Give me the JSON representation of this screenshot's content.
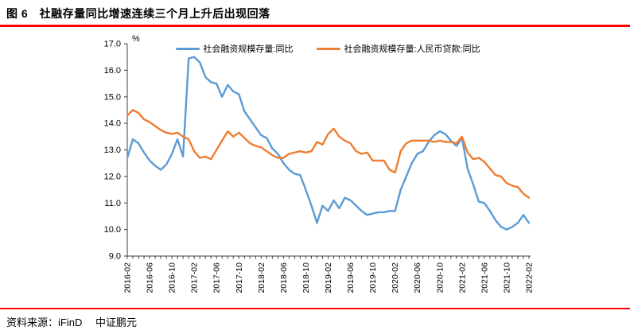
{
  "header": {
    "title": "图 6　社融存量同比增速连续三个月上升后出现回落"
  },
  "footer": {
    "source": "资料来源：iFinD　 中证鹏元"
  },
  "colors": {
    "divider_red": "#fe0000",
    "series_tsf_blue": "#5B9BD5",
    "series_rmb_loans_orange": "#ED7D31",
    "axis": "#404040"
  },
  "chart_data": {
    "type": "line",
    "title": "",
    "unit_label": "%",
    "x_start": "2016-02",
    "x_end": "2022-02",
    "x_interval": "monthly",
    "points_per_series": 73,
    "x_tick_labels": [
      "2016-02",
      "2016-06",
      "2016-10",
      "2017-02",
      "2017-06",
      "2017-10",
      "2018-02",
      "2018-06",
      "2018-10",
      "2019-02",
      "2019-06",
      "2019-10",
      "2020-02",
      "2020-06",
      "2020-10",
      "2021-02",
      "2021-06",
      "2021-10",
      "2022-02"
    ],
    "x_tick_every_n_months": 4,
    "ylim": [
      9.0,
      17.0
    ],
    "y_tick_step": 1.0,
    "y_tick_labels": [
      "9.0",
      "10.0",
      "11.0",
      "12.0",
      "13.0",
      "14.0",
      "15.0",
      "16.0",
      "17.0"
    ],
    "grid": false,
    "legend_position": "top",
    "series": [
      {
        "name": "社会融资规模存量:同比",
        "color": "#5B9BD5",
        "values": [
          12.7,
          13.4,
          13.25,
          12.9,
          12.6,
          12.4,
          12.25,
          12.45,
          12.85,
          13.4,
          12.75,
          16.45,
          16.5,
          16.3,
          15.75,
          15.55,
          15.5,
          15.0,
          15.45,
          15.2,
          15.1,
          14.45,
          14.15,
          13.85,
          13.55,
          13.45,
          13.05,
          12.85,
          12.5,
          12.25,
          12.1,
          12.05,
          11.5,
          10.9,
          10.25,
          10.9,
          10.7,
          11.1,
          10.8,
          11.2,
          11.1,
          10.9,
          10.7,
          10.55,
          10.6,
          10.65,
          10.65,
          10.7,
          10.7,
          11.5,
          12.0,
          12.5,
          12.85,
          12.95,
          13.3,
          13.55,
          13.7,
          13.6,
          13.35,
          13.15,
          13.45,
          12.3,
          11.7,
          11.05,
          11.0,
          10.7,
          10.35,
          10.1,
          10.0,
          10.1,
          10.25,
          10.55,
          10.25
        ]
      },
      {
        "name": "社会融资规模存量:人民币贷款:同比",
        "color": "#ED7D31",
        "values": [
          14.3,
          14.5,
          14.4,
          14.15,
          14.05,
          13.9,
          13.75,
          13.65,
          13.6,
          13.65,
          13.5,
          13.4,
          12.95,
          12.7,
          12.75,
          12.65,
          13.0,
          13.35,
          13.7,
          13.5,
          13.65,
          13.45,
          13.25,
          13.15,
          13.1,
          12.95,
          12.8,
          12.7,
          12.7,
          12.85,
          12.9,
          12.95,
          12.9,
          12.95,
          13.3,
          13.2,
          13.6,
          13.8,
          13.5,
          13.35,
          13.25,
          12.95,
          12.85,
          12.9,
          12.6,
          12.6,
          12.6,
          12.25,
          12.15,
          12.95,
          13.25,
          13.35,
          13.35,
          13.35,
          13.35,
          13.3,
          13.35,
          13.3,
          13.3,
          13.25,
          13.5,
          12.9,
          12.65,
          12.7,
          12.55,
          12.3,
          12.05,
          12.0,
          11.75,
          11.65,
          11.6,
          11.35,
          11.2
        ]
      }
    ]
  }
}
